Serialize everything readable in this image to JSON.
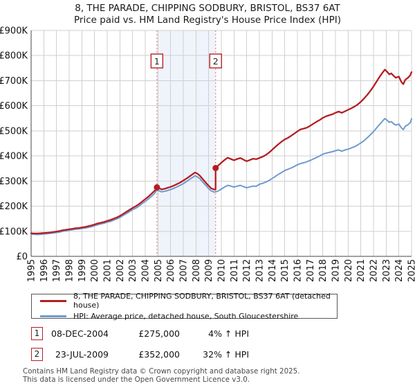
{
  "title": {
    "line1": "8, THE PARADE, CHIPPING SODBURY, BRISTOL, BS37 6AT",
    "line2": "Price paid vs. HM Land Registry's House Price Index (HPI)"
  },
  "chart_data": {
    "type": "line",
    "title": "Price paid vs. HM Land Registry's House Price Index (HPI)",
    "x_axis": {
      "tick_years": [
        1995,
        1996,
        1997,
        1998,
        1999,
        2000,
        2001,
        2002,
        2003,
        2004,
        2005,
        2006,
        2007,
        2008,
        2009,
        2010,
        2011,
        2012,
        2013,
        2014,
        2015,
        2016,
        2017,
        2018,
        2019,
        2020,
        2021,
        2022,
        2023,
        2024,
        2025
      ],
      "min": 1995,
      "max": 2025
    },
    "y_axis": {
      "ticks": [
        "£0",
        "£100K",
        "£200K",
        "£300K",
        "£400K",
        "£500K",
        "£600K",
        "£700K",
        "£800K",
        "£900K"
      ],
      "min": 0,
      "max": 900,
      "unit": "£K",
      "grid": true
    },
    "highlight_band": {
      "from": 2004.92,
      "to": 2009.55,
      "color": "#eff3fb"
    },
    "sales": [
      {
        "n": "1",
        "year": 2004.92,
        "price_k": 275
      },
      {
        "n": "2",
        "year": 2009.55,
        "price_k": 352
      }
    ],
    "series": [
      {
        "name": "price-paid-indexed",
        "label": "8, THE PARADE, CHIPPING SODBURY, BRISTOL, BS37 6AT (detached house)",
        "color": "#b51d22",
        "width": 2.3,
        "points": [
          [
            1995.0,
            92
          ],
          [
            1995.25,
            91
          ],
          [
            1995.5,
            91
          ],
          [
            1995.75,
            92
          ],
          [
            1996.0,
            93
          ],
          [
            1996.25,
            94
          ],
          [
            1996.5,
            95
          ],
          [
            1996.75,
            97
          ],
          [
            1997.0,
            99
          ],
          [
            1997.25,
            101
          ],
          [
            1997.5,
            104
          ],
          [
            1997.75,
            106
          ],
          [
            1998.0,
            108
          ],
          [
            1998.25,
            110
          ],
          [
            1998.5,
            112
          ],
          [
            1998.75,
            113
          ],
          [
            1999.0,
            115
          ],
          [
            1999.25,
            117
          ],
          [
            1999.5,
            120
          ],
          [
            1999.75,
            123
          ],
          [
            2000.0,
            127
          ],
          [
            2000.25,
            131
          ],
          [
            2000.5,
            134
          ],
          [
            2000.75,
            137
          ],
          [
            2001.0,
            141
          ],
          [
            2001.25,
            145
          ],
          [
            2001.5,
            150
          ],
          [
            2001.75,
            155
          ],
          [
            2002.0,
            161
          ],
          [
            2002.25,
            169
          ],
          [
            2002.5,
            177
          ],
          [
            2002.75,
            185
          ],
          [
            2003.0,
            193
          ],
          [
            2003.25,
            200
          ],
          [
            2003.5,
            208
          ],
          [
            2003.75,
            218
          ],
          [
            2004.0,
            228
          ],
          [
            2004.25,
            238
          ],
          [
            2004.5,
            250
          ],
          [
            2004.75,
            262
          ],
          [
            2004.92,
            275
          ],
          [
            2005.1,
            271
          ],
          [
            2005.3,
            267
          ],
          [
            2005.5,
            269
          ],
          [
            2005.75,
            273
          ],
          [
            2006.0,
            277
          ],
          [
            2006.25,
            282
          ],
          [
            2006.5,
            288
          ],
          [
            2006.75,
            294
          ],
          [
            2007.0,
            302
          ],
          [
            2007.25,
            310
          ],
          [
            2007.5,
            319
          ],
          [
            2007.75,
            328
          ],
          [
            2007.92,
            334
          ],
          [
            2008.1,
            330
          ],
          [
            2008.3,
            322
          ],
          [
            2008.5,
            310
          ],
          [
            2008.75,
            295
          ],
          [
            2009.0,
            281
          ],
          [
            2009.2,
            271
          ],
          [
            2009.45,
            266
          ],
          [
            2009.55,
            267
          ],
          [
            2009.55,
            352
          ],
          [
            2009.75,
            362
          ],
          [
            2010.0,
            373
          ],
          [
            2010.25,
            384
          ],
          [
            2010.5,
            393
          ],
          [
            2010.75,
            388
          ],
          [
            2011.0,
            383
          ],
          [
            2011.25,
            388
          ],
          [
            2011.5,
            392
          ],
          [
            2011.75,
            385
          ],
          [
            2012.0,
            379
          ],
          [
            2012.25,
            384
          ],
          [
            2012.5,
            389
          ],
          [
            2012.75,
            387
          ],
          [
            2013.0,
            392
          ],
          [
            2013.25,
            397
          ],
          [
            2013.5,
            404
          ],
          [
            2013.75,
            413
          ],
          [
            2014.0,
            424
          ],
          [
            2014.25,
            436
          ],
          [
            2014.5,
            447
          ],
          [
            2014.75,
            457
          ],
          [
            2015.0,
            466
          ],
          [
            2015.25,
            472
          ],
          [
            2015.5,
            480
          ],
          [
            2015.75,
            489
          ],
          [
            2016.0,
            498
          ],
          [
            2016.25,
            506
          ],
          [
            2016.5,
            509
          ],
          [
            2016.75,
            513
          ],
          [
            2017.0,
            520
          ],
          [
            2017.25,
            528
          ],
          [
            2017.5,
            536
          ],
          [
            2017.75,
            543
          ],
          [
            2018.0,
            552
          ],
          [
            2018.25,
            558
          ],
          [
            2018.5,
            562
          ],
          [
            2018.75,
            566
          ],
          [
            2019.0,
            572
          ],
          [
            2019.25,
            577
          ],
          [
            2019.5,
            572
          ],
          [
            2019.75,
            578
          ],
          [
            2020.0,
            584
          ],
          [
            2020.25,
            590
          ],
          [
            2020.5,
            597
          ],
          [
            2020.75,
            605
          ],
          [
            2021.0,
            616
          ],
          [
            2021.25,
            629
          ],
          [
            2021.5,
            643
          ],
          [
            2021.75,
            659
          ],
          [
            2022.0,
            677
          ],
          [
            2022.25,
            697
          ],
          [
            2022.5,
            717
          ],
          [
            2022.75,
            735
          ],
          [
            2022.9,
            744
          ],
          [
            2023.1,
            734
          ],
          [
            2023.25,
            725
          ],
          [
            2023.4,
            729
          ],
          [
            2023.55,
            721
          ],
          [
            2023.75,
            712
          ],
          [
            2024.0,
            716
          ],
          [
            2024.2,
            695
          ],
          [
            2024.35,
            686
          ],
          [
            2024.5,
            703
          ],
          [
            2024.75,
            713
          ],
          [
            2024.9,
            722
          ],
          [
            2025.0,
            734
          ]
        ]
      },
      {
        "name": "hpi-average",
        "label": "HPI: Average price, detached house, South Gloucestershire",
        "color": "#6f9ace",
        "width": 2,
        "points": [
          [
            1995.0,
            88
          ],
          [
            1995.25,
            88
          ],
          [
            1995.5,
            87
          ],
          [
            1995.75,
            88
          ],
          [
            1996.0,
            89
          ],
          [
            1996.25,
            90
          ],
          [
            1996.5,
            92
          ],
          [
            1996.75,
            93
          ],
          [
            1997.0,
            95
          ],
          [
            1997.25,
            97
          ],
          [
            1997.5,
            100
          ],
          [
            1997.75,
            102
          ],
          [
            1998.0,
            104
          ],
          [
            1998.25,
            106
          ],
          [
            1998.5,
            108
          ],
          [
            1998.75,
            109
          ],
          [
            1999.0,
            111
          ],
          [
            1999.25,
            113
          ],
          [
            1999.5,
            115
          ],
          [
            1999.75,
            118
          ],
          [
            2000.0,
            122
          ],
          [
            2000.25,
            126
          ],
          [
            2000.5,
            129
          ],
          [
            2000.75,
            132
          ],
          [
            2001.0,
            136
          ],
          [
            2001.25,
            139
          ],
          [
            2001.5,
            144
          ],
          [
            2001.75,
            149
          ],
          [
            2002.0,
            155
          ],
          [
            2002.25,
            163
          ],
          [
            2002.5,
            170
          ],
          [
            2002.75,
            178
          ],
          [
            2003.0,
            186
          ],
          [
            2003.25,
            192
          ],
          [
            2003.5,
            200
          ],
          [
            2003.75,
            210
          ],
          [
            2004.0,
            219
          ],
          [
            2004.25,
            229
          ],
          [
            2004.5,
            240
          ],
          [
            2004.75,
            252
          ],
          [
            2004.92,
            264
          ],
          [
            2005.1,
            261
          ],
          [
            2005.3,
            257
          ],
          [
            2005.5,
            259
          ],
          [
            2005.75,
            262
          ],
          [
            2006.0,
            266
          ],
          [
            2006.25,
            271
          ],
          [
            2006.5,
            277
          ],
          [
            2006.75,
            283
          ],
          [
            2007.0,
            290
          ],
          [
            2007.25,
            298
          ],
          [
            2007.5,
            307
          ],
          [
            2007.75,
            315
          ],
          [
            2007.92,
            321
          ],
          [
            2008.1,
            317
          ],
          [
            2008.3,
            310
          ],
          [
            2008.5,
            298
          ],
          [
            2008.75,
            284
          ],
          [
            2009.0,
            270
          ],
          [
            2009.2,
            261
          ],
          [
            2009.45,
            256
          ],
          [
            2009.7,
            259
          ],
          [
            2010.0,
            268
          ],
          [
            2010.25,
            276
          ],
          [
            2010.5,
            283
          ],
          [
            2010.75,
            280
          ],
          [
            2011.0,
            276
          ],
          [
            2011.25,
            280
          ],
          [
            2011.5,
            283
          ],
          [
            2011.75,
            278
          ],
          [
            2012.0,
            273
          ],
          [
            2012.25,
            277
          ],
          [
            2012.5,
            280
          ],
          [
            2012.75,
            279
          ],
          [
            2013.0,
            287
          ],
          [
            2013.25,
            291
          ],
          [
            2013.5,
            296
          ],
          [
            2013.75,
            302
          ],
          [
            2014.0,
            310
          ],
          [
            2014.25,
            318
          ],
          [
            2014.5,
            327
          ],
          [
            2014.75,
            334
          ],
          [
            2015.0,
            342
          ],
          [
            2015.25,
            347
          ],
          [
            2015.5,
            352
          ],
          [
            2015.75,
            358
          ],
          [
            2016.0,
            365
          ],
          [
            2016.25,
            370
          ],
          [
            2016.5,
            373
          ],
          [
            2016.75,
            377
          ],
          [
            2017.0,
            382
          ],
          [
            2017.25,
            388
          ],
          [
            2017.5,
            394
          ],
          [
            2017.75,
            400
          ],
          [
            2018.0,
            407
          ],
          [
            2018.25,
            411
          ],
          [
            2018.5,
            414
          ],
          [
            2018.75,
            417
          ],
          [
            2019.0,
            421
          ],
          [
            2019.25,
            424
          ],
          [
            2019.5,
            419
          ],
          [
            2019.75,
            424
          ],
          [
            2020.0,
            427
          ],
          [
            2020.25,
            432
          ],
          [
            2020.5,
            437
          ],
          [
            2020.75,
            444
          ],
          [
            2021.0,
            452
          ],
          [
            2021.25,
            461
          ],
          [
            2021.5,
            472
          ],
          [
            2021.75,
            484
          ],
          [
            2022.0,
            497
          ],
          [
            2022.25,
            512
          ],
          [
            2022.5,
            527
          ],
          [
            2022.75,
            541
          ],
          [
            2022.9,
            549
          ],
          [
            2023.1,
            541
          ],
          [
            2023.25,
            534
          ],
          [
            2023.4,
            537
          ],
          [
            2023.55,
            530
          ],
          [
            2023.75,
            523
          ],
          [
            2024.0,
            527
          ],
          [
            2024.2,
            512
          ],
          [
            2024.35,
            505
          ],
          [
            2024.5,
            518
          ],
          [
            2024.75,
            526
          ],
          [
            2024.9,
            533
          ],
          [
            2025.0,
            548
          ]
        ]
      }
    ]
  },
  "legend": {
    "items": [
      {
        "label": "8, THE PARADE, CHIPPING SODBURY, BRISTOL, BS37 6AT (detached house)",
        "color": "#b51d22"
      },
      {
        "label": "HPI: Average price, detached house, South Gloucestershire",
        "color": "#6f9ace"
      }
    ]
  },
  "transactions": {
    "rows": [
      {
        "num": "1",
        "date": "08-DEC-2004",
        "price": "£275,000",
        "hpi_diff": "4% ↑ HPI"
      },
      {
        "num": "2",
        "date": "23-JUL-2009",
        "price": "£352,000",
        "hpi_diff": "32% ↑ HPI"
      }
    ]
  },
  "footer": {
    "line1": "Contains HM Land Registry data © Crown copyright and database right 2025.",
    "line2": "This data is licensed under the Open Government Licence v3.0."
  }
}
